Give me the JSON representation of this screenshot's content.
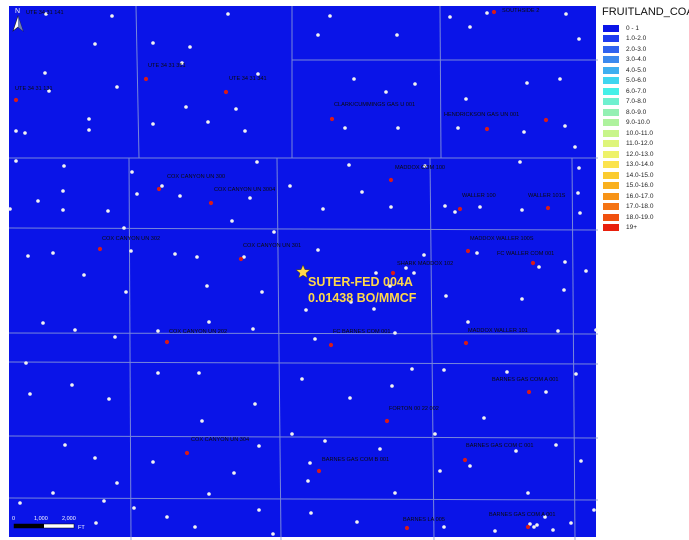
{
  "map": {
    "background_color": "#0a14e8",
    "grid_color": "#8c9bd8",
    "well_color": "#f2f2f2",
    "highlight_color": "#d81a1a",
    "callout_color": "#ffd84a",
    "north_label": "N",
    "scale_labels": [
      "0",
      "1,000",
      "2,000",
      "FT"
    ]
  },
  "legend": {
    "title": "FRUITLAND_COA",
    "items": [
      {
        "label": "0 - 1",
        "color": "#0a14e8"
      },
      {
        "label": "1.0-2.0",
        "color": "#1e3cf0"
      },
      {
        "label": "2.0-3.0",
        "color": "#2f63ef"
      },
      {
        "label": "3.0-4.0",
        "color": "#3b8aee"
      },
      {
        "label": "4.0-5.0",
        "color": "#3eaff0"
      },
      {
        "label": "5.0-6.0",
        "color": "#3fd6f0"
      },
      {
        "label": "6.0-7.0",
        "color": "#45f0e8"
      },
      {
        "label": "7.0-8.0",
        "color": "#6ff0cf"
      },
      {
        "label": "8.0-9.0",
        "color": "#93f0b3"
      },
      {
        "label": "9.0-10.0",
        "color": "#aef29e"
      },
      {
        "label": "10.0-11.0",
        "color": "#c8f58a"
      },
      {
        "label": "11.0-12.0",
        "color": "#def57a"
      },
      {
        "label": "12.0-13.0",
        "color": "#eef26a"
      },
      {
        "label": "13.0-14.0",
        "color": "#fbe34d"
      },
      {
        "label": "14.0-15.0",
        "color": "#fbcb2f"
      },
      {
        "label": "15.0-16.0",
        "color": "#f9b01e"
      },
      {
        "label": "16.0-17.0",
        "color": "#f79317"
      },
      {
        "label": "17.0-18.0",
        "color": "#f47313"
      },
      {
        "label": "18.0-19.0",
        "color": "#f0500f"
      },
      {
        "label": "19+",
        "color": "#e8200d"
      }
    ]
  },
  "callout": {
    "name": "SUTER-FED 004A",
    "value": "0.01438 BO/MMCF"
  },
  "well_labels": [
    "UTE 34 31 141",
    "UTE 34 31 131",
    "UTE 34 31 351",
    "UTE 34 31 341",
    "SOUTHSIDE 2",
    "CLARK/CUMMINGS GAS U 001",
    "HENDRICKSON GAS UN 001",
    "MADDOX COM 100",
    "COX CANYON UN 300",
    "COX CANYON UN 3004",
    "WALLER 100",
    "WALLER 101S",
    "COX CANYON UN 302",
    "COX CANYON UN 301",
    "MADDOX WALLER 100S",
    "SHARK MADDOX 102",
    "FC WALLER COM 001",
    "COX CANYON UN 202",
    "FC BARNES COM 001",
    "MADDOX WALLER 101",
    "BARNES GAS COM A 001",
    "FORTON 00 22 002",
    "COX CANYON UN 304",
    "BARNES GAS COM B 001",
    "BARNES GAS COM C 001",
    "BARNES LA 005",
    "BARNES GAS COM A 001"
  ]
}
